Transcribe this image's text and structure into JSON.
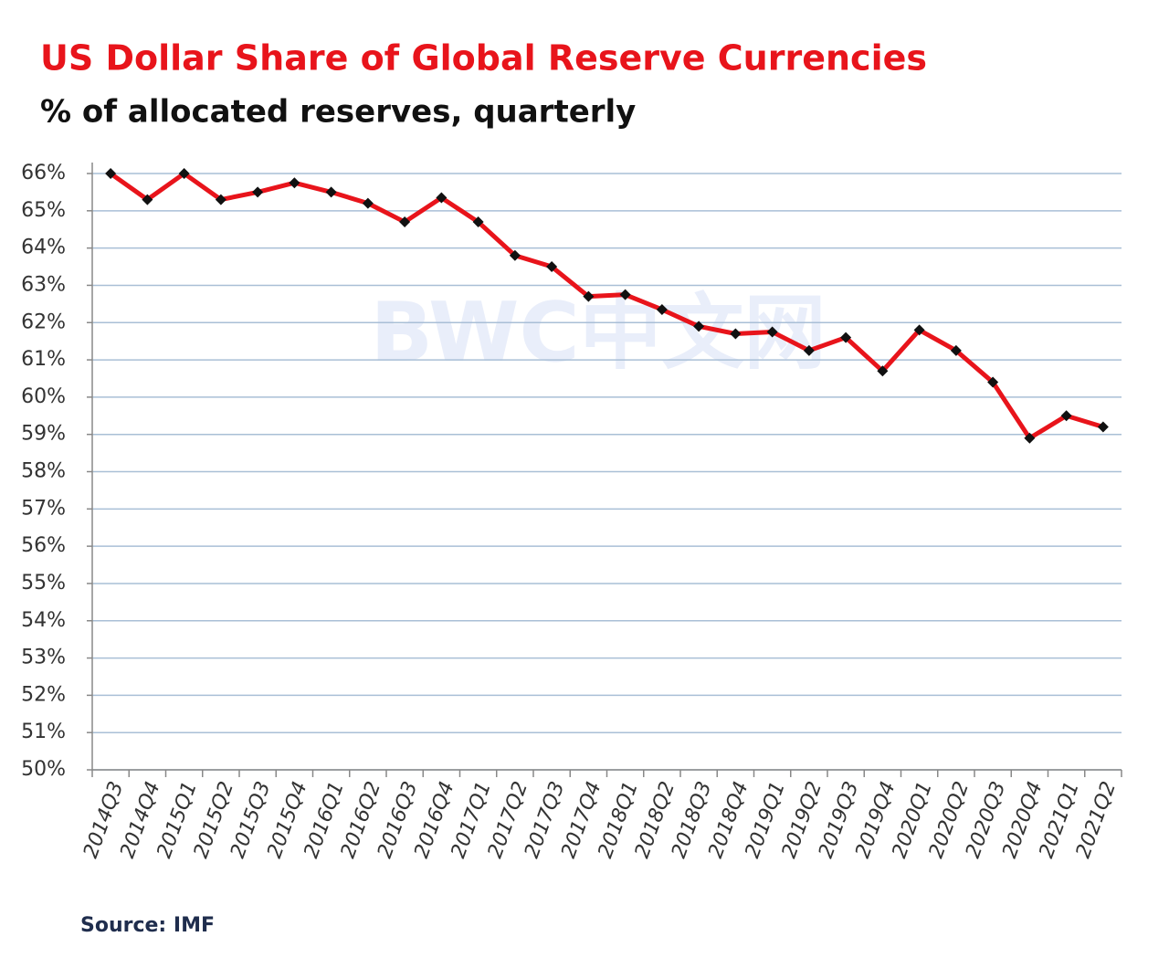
{
  "chart_data": {
    "type": "line",
    "title": "US Dollar Share of Global Reserve Currencies",
    "subtitle": "% of allocated reserves, quarterly",
    "source": "Source: IMF",
    "watermark": "BWC中文网",
    "categories": [
      "2014Q3",
      "2014Q4",
      "2015Q1",
      "2015Q2",
      "2015Q3",
      "2015Q4",
      "2016Q1",
      "2016Q2",
      "2016Q3",
      "2016Q4",
      "2017Q1",
      "2017Q2",
      "2017Q3",
      "2017Q4",
      "2018Q1",
      "2018Q2",
      "2018Q3",
      "2018Q4",
      "2019Q1",
      "2019Q2",
      "2019Q3",
      "2019Q4",
      "2020Q1",
      "2020Q2",
      "2020Q3",
      "2020Q4",
      "2021Q1",
      "2021Q2"
    ],
    "values": [
      66.0,
      65.3,
      66.0,
      65.3,
      65.5,
      65.75,
      65.5,
      65.2,
      64.7,
      65.35,
      64.7,
      63.8,
      63.5,
      62.7,
      62.75,
      62.35,
      61.9,
      61.7,
      61.75,
      61.25,
      61.6,
      60.7,
      61.8,
      61.25,
      60.4,
      58.9,
      59.5,
      59.2
    ],
    "color": "#e8141b",
    "marker_color": "#111111",
    "ylim": [
      50,
      66
    ],
    "yticks": [
      {
        "value": 50,
        "label": "50%"
      },
      {
        "value": 51,
        "label": "51%"
      },
      {
        "value": 52,
        "label": "52%"
      },
      {
        "value": 53,
        "label": "53%"
      },
      {
        "value": 54,
        "label": "54%"
      },
      {
        "value": 55,
        "label": "55%"
      },
      {
        "value": 56,
        "label": "56%"
      },
      {
        "value": 57,
        "label": "57%"
      },
      {
        "value": 58,
        "label": "58%"
      },
      {
        "value": 59,
        "label": "59%"
      },
      {
        "value": 60,
        "label": "60%"
      },
      {
        "value": 61,
        "label": "61%"
      },
      {
        "value": 62,
        "label": "62%"
      },
      {
        "value": 63,
        "label": "63%"
      },
      {
        "value": 64,
        "label": "64%"
      },
      {
        "value": 65,
        "label": "65%"
      },
      {
        "value": 66,
        "label": "66%"
      }
    ],
    "grid": true
  }
}
